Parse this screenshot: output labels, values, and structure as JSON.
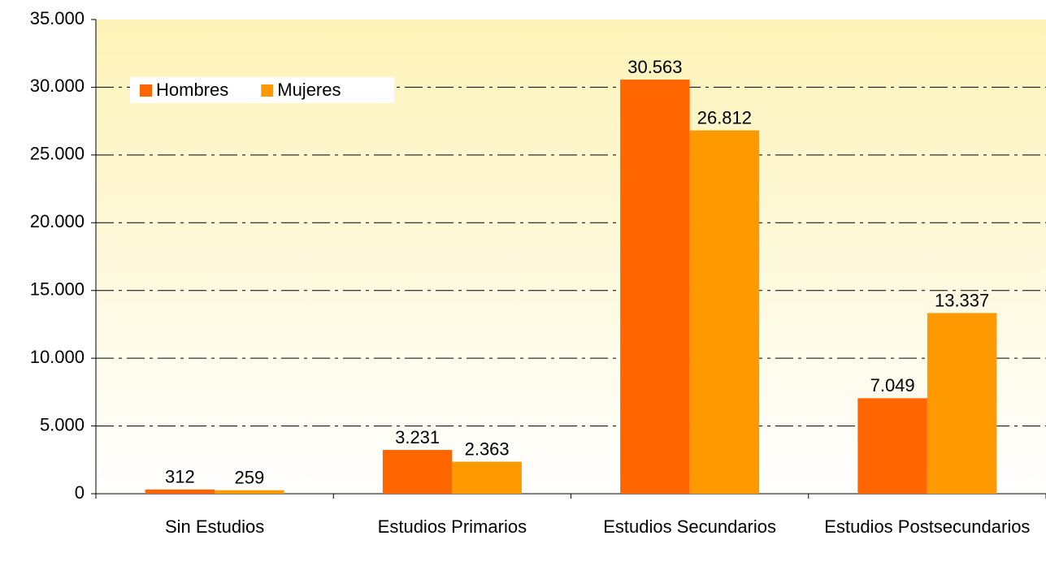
{
  "chart_data": {
    "type": "bar",
    "categories": [
      "Sin Estudios",
      "Estudios Primarios",
      "Estudios Secundarios",
      "Estudios Postsecundarios"
    ],
    "series": [
      {
        "name": "Hombres",
        "color": "#ff6600",
        "values": [
          312,
          3231,
          30563,
          7049
        ],
        "value_labels": [
          "312",
          "3.231",
          "30.563",
          "7.049"
        ]
      },
      {
        "name": "Mujeres",
        "color": "#ff9900",
        "values": [
          259,
          2363,
          26812,
          13337
        ],
        "value_labels": [
          "259",
          "2.363",
          "26.812",
          "13.337"
        ]
      }
    ],
    "ylim": [
      0,
      35000
    ],
    "yticks": [
      0,
      {
        "value": 5000,
        "label": "5.000"
      },
      {
        "value": 10000,
        "label": "10.000"
      },
      {
        "value": 15000,
        "label": "15.000"
      },
      {
        "value": 20000,
        "label": "20.000"
      },
      {
        "value": 25000,
        "label": "25.000"
      },
      {
        "value": 30000,
        "label": "30.000"
      },
      {
        "value": 35000,
        "label": "35.000"
      }
    ],
    "grid": true,
    "legend": "top-left"
  }
}
